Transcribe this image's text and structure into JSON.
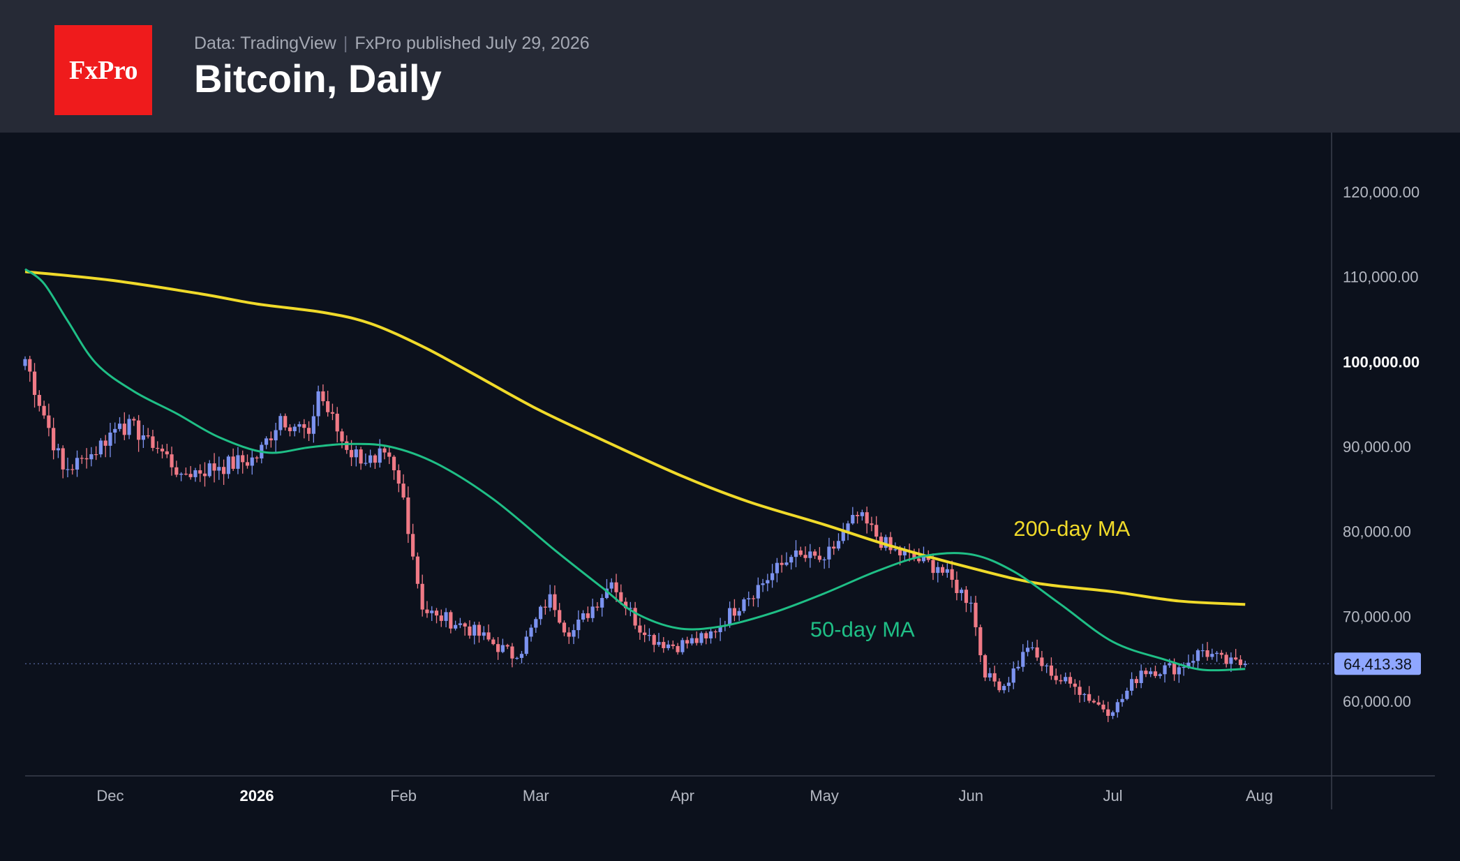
{
  "header": {
    "logo_text": "FxPro",
    "source": "Data: TradingView",
    "published": "FxPro published July 29, 2026",
    "title": "Bitcoin, Daily"
  },
  "colors": {
    "header_bg": "#262a36",
    "chart_bg": "#0c111c",
    "logo_bg": "#ef1b1c",
    "up_candle": "#7c93f0",
    "down_candle": "#f07a86",
    "ma50": "#1fbf86",
    "ma200": "#f0da2a",
    "price_tag": "#8fa7ff"
  },
  "chart_data": {
    "type": "candlestick",
    "title": "Bitcoin, Daily",
    "y_range": [
      51000,
      127000
    ],
    "y_ticks": [
      {
        "value": 120000,
        "label": "120,000.00"
      },
      {
        "value": 110000,
        "label": "110,000.00"
      },
      {
        "value": 100000,
        "label": "100,000.00",
        "bold": true
      },
      {
        "value": 90000,
        "label": "90,000.00"
      },
      {
        "value": 80000,
        "label": "80,000.00"
      },
      {
        "value": 70000,
        "label": "70,000.00"
      },
      {
        "value": 60000,
        "label": "60,000.00"
      }
    ],
    "x_start_date": "2025-11-13",
    "x_end_date": "2026-08-08",
    "x_ticks": [
      {
        "date": "2025-12-01",
        "label": "Dec"
      },
      {
        "date": "2026-01-01",
        "label": "2026",
        "bold": true
      },
      {
        "date": "2026-02-01",
        "label": "Feb"
      },
      {
        "date": "2026-03-01",
        "label": "Mar"
      },
      {
        "date": "2026-04-01",
        "label": "Apr"
      },
      {
        "date": "2026-05-01",
        "label": "May"
      },
      {
        "date": "2026-06-01",
        "label": "Jun"
      },
      {
        "date": "2026-07-01",
        "label": "Jul"
      },
      {
        "date": "2026-08-01",
        "label": "Aug"
      }
    ],
    "last_price": {
      "value": 64413.38,
      "label": "64,413.38"
    },
    "series": [
      {
        "name": "200-day MA",
        "label": "200-day MA",
        "points": [
          [
            "2025-11-13",
            110600
          ],
          [
            "2025-12-01",
            109600
          ],
          [
            "2025-12-20",
            108000
          ],
          [
            "2026-01-01",
            106800
          ],
          [
            "2026-01-15",
            105800
          ],
          [
            "2026-01-25",
            104500
          ],
          [
            "2026-02-05",
            101800
          ],
          [
            "2026-02-15",
            98800
          ],
          [
            "2026-03-01",
            94500
          ],
          [
            "2026-03-15",
            90800
          ],
          [
            "2026-04-01",
            86500
          ],
          [
            "2026-04-15",
            83500
          ],
          [
            "2026-05-01",
            80800
          ],
          [
            "2026-05-15",
            78300
          ],
          [
            "2026-06-01",
            75700
          ],
          [
            "2026-06-15",
            73900
          ],
          [
            "2026-07-01",
            72900
          ],
          [
            "2026-07-15",
            71800
          ],
          [
            "2026-07-29",
            71400
          ]
        ]
      },
      {
        "name": "50-day MA",
        "label": "50-day MA",
        "points": [
          [
            "2025-11-13",
            110900
          ],
          [
            "2025-11-17",
            109200
          ],
          [
            "2025-11-22",
            104800
          ],
          [
            "2025-11-28",
            99800
          ],
          [
            "2025-12-06",
            96500
          ],
          [
            "2025-12-15",
            93900
          ],
          [
            "2025-12-24",
            91100
          ],
          [
            "2026-01-03",
            89300
          ],
          [
            "2026-01-12",
            89900
          ],
          [
            "2026-01-20",
            90300
          ],
          [
            "2026-01-29",
            90000
          ],
          [
            "2026-02-08",
            88000
          ],
          [
            "2026-02-20",
            83800
          ],
          [
            "2026-03-05",
            77800
          ],
          [
            "2026-03-15",
            73400
          ],
          [
            "2026-03-22",
            70400
          ],
          [
            "2026-03-31",
            68600
          ],
          [
            "2026-04-09",
            68800
          ],
          [
            "2026-04-20",
            70400
          ],
          [
            "2026-05-01",
            72700
          ],
          [
            "2026-05-12",
            75300
          ],
          [
            "2026-05-22",
            77100
          ],
          [
            "2026-06-01",
            77300
          ],
          [
            "2026-06-10",
            75300
          ],
          [
            "2026-06-20",
            71400
          ],
          [
            "2026-07-01",
            67000
          ],
          [
            "2026-07-12",
            64900
          ],
          [
            "2026-07-20",
            63700
          ],
          [
            "2026-07-29",
            63800
          ]
        ]
      }
    ],
    "candle_anchors": [
      [
        "2025-11-13",
        100300
      ],
      [
        "2025-11-21",
        87300
      ],
      [
        "2025-11-26",
        88500
      ],
      [
        "2025-12-03",
        92700
      ],
      [
        "2025-12-09",
        91200
      ],
      [
        "2025-12-16",
        86800
      ],
      [
        "2025-12-24",
        87600
      ],
      [
        "2026-01-01",
        88600
      ],
      [
        "2026-01-06",
        93600
      ],
      [
        "2026-01-12",
        91500
      ],
      [
        "2026-01-14",
        96500
      ],
      [
        "2026-01-20",
        89600
      ],
      [
        "2026-01-26",
        88100
      ],
      [
        "2026-01-28",
        89300
      ],
      [
        "2026-02-01",
        84000
      ],
      [
        "2026-02-05",
        70800
      ],
      [
        "2026-02-08",
        70100
      ],
      [
        "2026-02-14",
        68800
      ],
      [
        "2026-02-25",
        65100
      ],
      [
        "2026-03-04",
        72600
      ],
      [
        "2026-03-08",
        67600
      ],
      [
        "2026-03-17",
        74000
      ],
      [
        "2026-03-24",
        67800
      ],
      [
        "2026-03-30",
        66500
      ],
      [
        "2026-04-06",
        67400
      ],
      [
        "2026-04-14",
        72000
      ],
      [
        "2026-04-24",
        77000
      ],
      [
        "2026-05-01",
        76700
      ],
      [
        "2026-05-08",
        81800
      ],
      [
        "2026-05-15",
        77800
      ],
      [
        "2026-05-25",
        75800
      ],
      [
        "2026-06-01",
        71600
      ],
      [
        "2026-06-04",
        62800
      ],
      [
        "2026-06-08",
        61800
      ],
      [
        "2026-06-13",
        66300
      ],
      [
        "2026-06-18",
        63000
      ],
      [
        "2026-06-23",
        61700
      ],
      [
        "2026-06-28",
        59600
      ],
      [
        "2026-07-01",
        58700
      ],
      [
        "2026-07-07",
        63600
      ],
      [
        "2026-07-15",
        64000
      ],
      [
        "2026-07-20",
        66000
      ],
      [
        "2026-07-25",
        64400
      ],
      [
        "2026-07-29",
        64413
      ]
    ],
    "annotations": [
      {
        "text": "200-day MA",
        "date": "2026-06-10",
        "value": 79500,
        "series": "200-day MA"
      },
      {
        "text": "50-day MA",
        "date": "2026-04-28",
        "value": 67600,
        "series": "50-day MA"
      }
    ],
    "grid": false,
    "legend": "inline labels"
  }
}
